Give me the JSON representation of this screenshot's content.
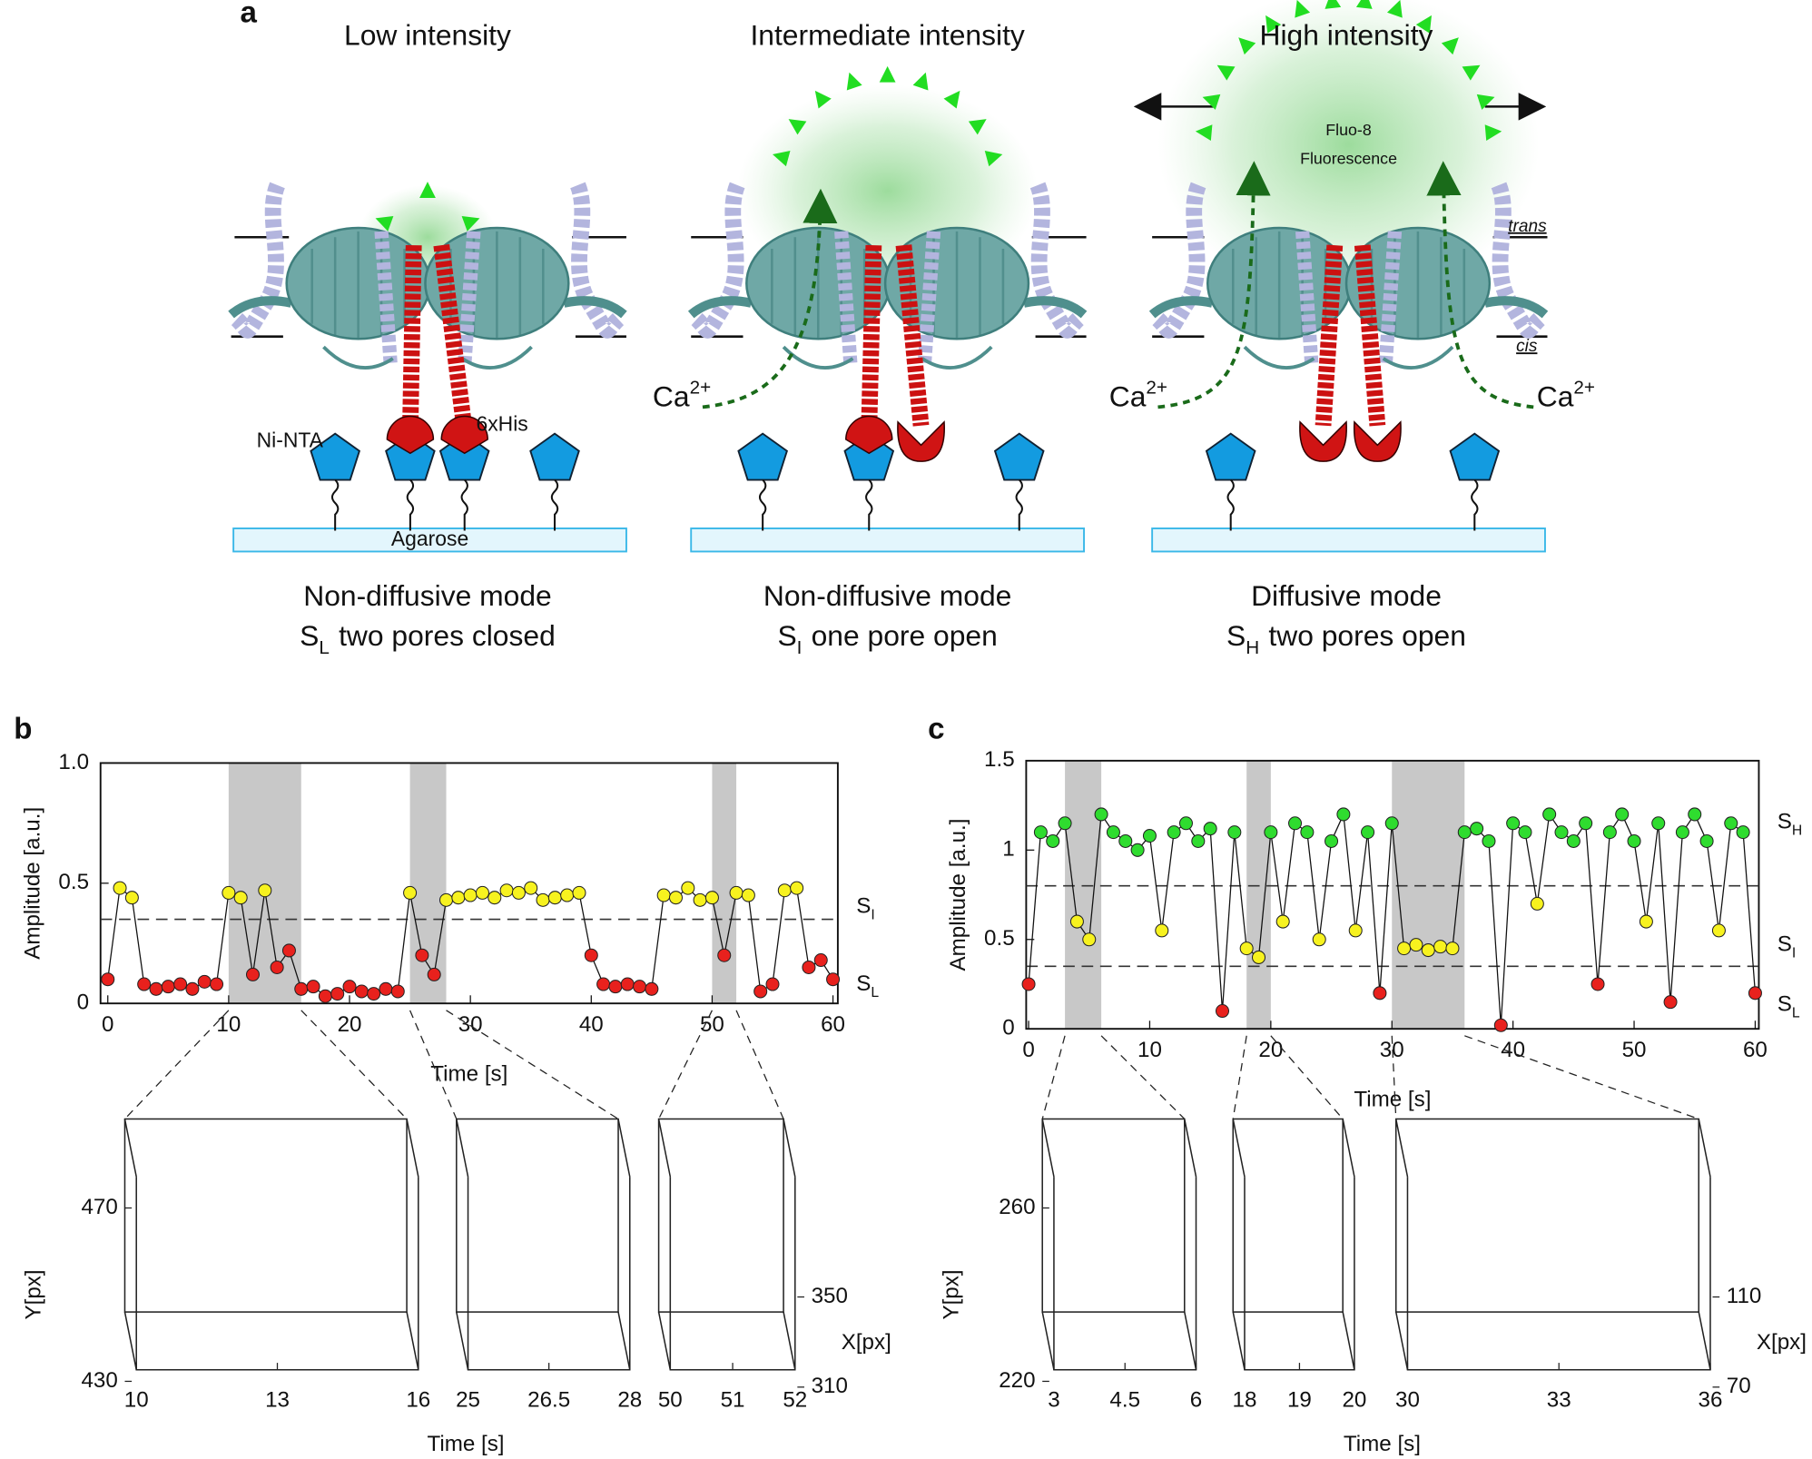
{
  "panel_a": {
    "label": "a",
    "columns": [
      {
        "title": "Low intensity",
        "mode": "Non-diffusive mode",
        "state": {
          "symbol": "S",
          "sub": "L",
          "text": "two pores closed"
        }
      },
      {
        "title": "Intermediate intensity",
        "mode": "Non-diffusive mode",
        "state": {
          "symbol": "S",
          "sub": "I",
          "text": "one pore open"
        }
      },
      {
        "title": "High intensity",
        "mode": "Diffusive mode",
        "state": {
          "symbol": "S",
          "sub": "H",
          "text": "two pores open"
        }
      }
    ],
    "labels": {
      "ni_nta": "Ni-NTA",
      "his": "6xHis",
      "agarose": "Agarose",
      "calcium": {
        "text": "Ca",
        "sup": "2+"
      },
      "dye": "Fluo-8",
      "fluorescence": "Fluorescence",
      "trans": "trans",
      "cis": "cis"
    }
  },
  "chart_data": [
    {
      "type": "scatter",
      "label": "b",
      "xlabel": "Time [s]",
      "ylabel": "Amplitude [a.u.]",
      "x": [
        0,
        1,
        2,
        3,
        4,
        5,
        6,
        7,
        8,
        9,
        10,
        11,
        12,
        13,
        14,
        15,
        16,
        17,
        18,
        19,
        20,
        21,
        22,
        23,
        24,
        25,
        26,
        27,
        28,
        29,
        30,
        31,
        32,
        33,
        34,
        35,
        36,
        37,
        38,
        39,
        40,
        41,
        42,
        43,
        44,
        45,
        46,
        47,
        48,
        49,
        50,
        51,
        52,
        53,
        54,
        55,
        56,
        57,
        58,
        59,
        60
      ],
      "values": [
        0.1,
        0.48,
        0.44,
        0.08,
        0.06,
        0.07,
        0.08,
        0.06,
        0.09,
        0.08,
        0.46,
        0.44,
        0.12,
        0.47,
        0.15,
        0.22,
        0.06,
        0.07,
        0.03,
        0.04,
        0.07,
        0.05,
        0.04,
        0.06,
        0.05,
        0.46,
        0.2,
        0.12,
        0.43,
        0.44,
        0.45,
        0.46,
        0.44,
        0.47,
        0.46,
        0.48,
        0.43,
        0.44,
        0.45,
        0.46,
        0.2,
        0.08,
        0.07,
        0.08,
        0.07,
        0.06,
        0.45,
        0.44,
        0.48,
        0.43,
        0.44,
        0.2,
        0.46,
        0.45,
        0.05,
        0.08,
        0.47,
        0.48,
        0.15,
        0.18,
        0.1
      ],
      "xlim": [
        -0.6,
        60.4
      ],
      "ylim": [
        0,
        1
      ],
      "xticks": [
        0,
        10,
        20,
        30,
        40,
        50,
        60
      ],
      "yticks": [
        0,
        0.5,
        {
          "value": 1,
          "label": "1.0"
        }
      ],
      "thresholds": [
        0.35
      ],
      "level_colors": [
        "#e8211d",
        "#f7f21f"
      ],
      "level_labels": [
        {
          "text": "S",
          "sub": "I"
        },
        {
          "text": "S",
          "sub": "L"
        }
      ],
      "highlights": [
        [
          10,
          16
        ],
        [
          25,
          28
        ],
        [
          50,
          52
        ]
      ],
      "highlight_color": "#c8c8c8",
      "insets": {
        "xlabel": "Time [s]",
        "ylabel": "Y[px]",
        "zlabel": "X[px]",
        "yticks": [
          430,
          470
        ],
        "zticks": [
          310,
          350
        ],
        "panels": [
          {
            "xticks": [
              10,
              13,
              16
            ]
          },
          {
            "xticks": [
              25,
              26.5,
              28
            ]
          },
          {
            "xticks": [
              50,
              51,
              52
            ]
          }
        ]
      }
    },
    {
      "type": "scatter",
      "label": "c",
      "xlabel": "Time [s]",
      "ylabel": "Amplitude [a.u.]",
      "x": [
        0,
        1,
        2,
        3,
        4,
        5,
        6,
        7,
        8,
        9,
        10,
        11,
        12,
        13,
        14,
        15,
        16,
        17,
        18,
        19,
        20,
        21,
        22,
        23,
        24,
        25,
        26,
        27,
        28,
        29,
        30,
        31,
        32,
        33,
        34,
        35,
        36,
        37,
        38,
        39,
        40,
        41,
        42,
        43,
        44,
        45,
        46,
        47,
        48,
        49,
        50,
        51,
        52,
        53,
        54,
        55,
        56,
        57,
        58,
        59,
        60
      ],
      "values": [
        0.25,
        1.1,
        1.05,
        1.15,
        0.6,
        0.5,
        1.2,
        1.1,
        1.05,
        1.0,
        1.08,
        0.55,
        1.1,
        1.15,
        1.05,
        1.12,
        0.1,
        1.1,
        0.45,
        0.4,
        1.1,
        0.6,
        1.15,
        1.1,
        0.5,
        1.05,
        1.2,
        0.55,
        1.1,
        0.2,
        1.15,
        0.45,
        0.47,
        0.44,
        0.46,
        0.45,
        1.1,
        1.12,
        1.05,
        0.02,
        1.15,
        1.1,
        0.7,
        1.2,
        1.1,
        1.05,
        1.15,
        0.25,
        1.1,
        1.2,
        1.05,
        0.6,
        1.15,
        0.15,
        1.1,
        1.2,
        1.05,
        0.55,
        1.15,
        1.1,
        0.2
      ],
      "xlim": [
        -0.2,
        60.3
      ],
      "ylim": [
        0,
        1.5
      ],
      "xticks": [
        0,
        10,
        20,
        30,
        40,
        50,
        60
      ],
      "yticks": [
        0,
        0.5,
        1,
        1.5
      ],
      "thresholds": [
        0.35,
        0.8
      ],
      "level_colors": [
        "#e8211d",
        "#f7f21f",
        "#2fdc2f"
      ],
      "level_labels": [
        {
          "text": "S",
          "sub": "H"
        },
        {
          "text": "S",
          "sub": "I"
        },
        {
          "text": "S",
          "sub": "L"
        }
      ],
      "highlights": [
        [
          3,
          6
        ],
        [
          18,
          20
        ],
        [
          30,
          36
        ]
      ],
      "highlight_color": "#c8c8c8",
      "insets": {
        "xlabel": "Time [s]",
        "ylabel": "Y[px]",
        "zlabel": "X[px]",
        "yticks": [
          220,
          260
        ],
        "zticks": [
          70,
          110
        ],
        "panels": [
          {
            "xticks": [
              3,
              4.5,
              6
            ]
          },
          {
            "xticks": [
              18,
              19,
              20
            ]
          },
          {
            "xticks": [
              30,
              33,
              36
            ]
          }
        ]
      }
    }
  ]
}
